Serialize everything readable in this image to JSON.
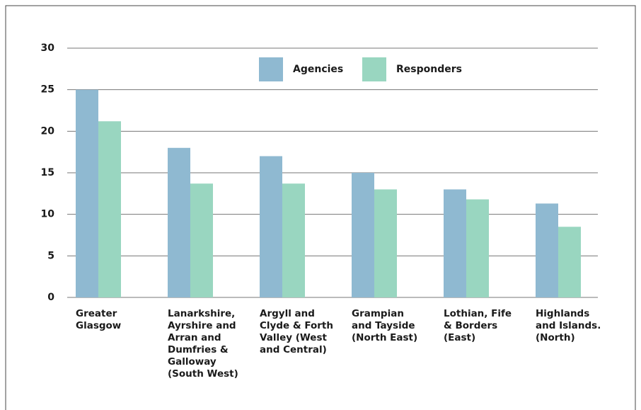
{
  "chart_data": {
    "type": "bar",
    "categories": [
      "Greater\nGlasgow",
      "Lanarkshire,\nAyrshire and\nArran and\nDumfries &\nGalloway\n(South West)",
      "Argyll and\nClyde & Forth\nValley (West\nand Central)",
      "Grampian\nand Tayside\n(North East)",
      "Lothian, Fife\n& Borders\n(East)",
      "Highlands\nand Islands.\n(North)"
    ],
    "series": [
      {
        "name": "Agencies",
        "color": "#8fb9d1",
        "values": [
          25,
          18,
          17,
          15,
          13,
          11.3
        ]
      },
      {
        "name": "Responders",
        "color": "#99d6c0",
        "values": [
          21.2,
          13.7,
          13.7,
          13,
          11.8,
          8.5
        ]
      }
    ],
    "ylim": [
      0,
      30
    ],
    "yticks": [
      0,
      5,
      10,
      15,
      20,
      25,
      30
    ],
    "grid": true,
    "legend": "top"
  }
}
